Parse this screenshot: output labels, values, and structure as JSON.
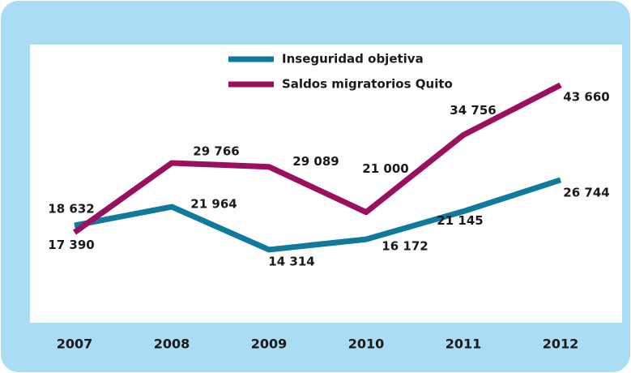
{
  "chart_data": {
    "type": "line",
    "categories": [
      "2007",
      "2008",
      "2009",
      "2010",
      "2011",
      "2012"
    ],
    "series": [
      {
        "name": "Inseguridad objetiva",
        "color": "#0f7a9c",
        "values": [
          18632,
          21964,
          14314,
          16172,
          21145,
          26744
        ],
        "value_labels": [
          "18 632",
          "21 964",
          "14 314",
          "16 172",
          "21 145",
          "26 744"
        ]
      },
      {
        "name": "Saldos migratorios Quito",
        "color": "#9a0f5e",
        "values": [
          17390,
          29766,
          29089,
          21000,
          34756,
          43660
        ],
        "value_labels": [
          "17 390",
          "29 766",
          "29 089",
          "21 000",
          "34 756",
          "43 660"
        ]
      }
    ],
    "ylim": [
      0,
      50000
    ],
    "grid": false
  }
}
